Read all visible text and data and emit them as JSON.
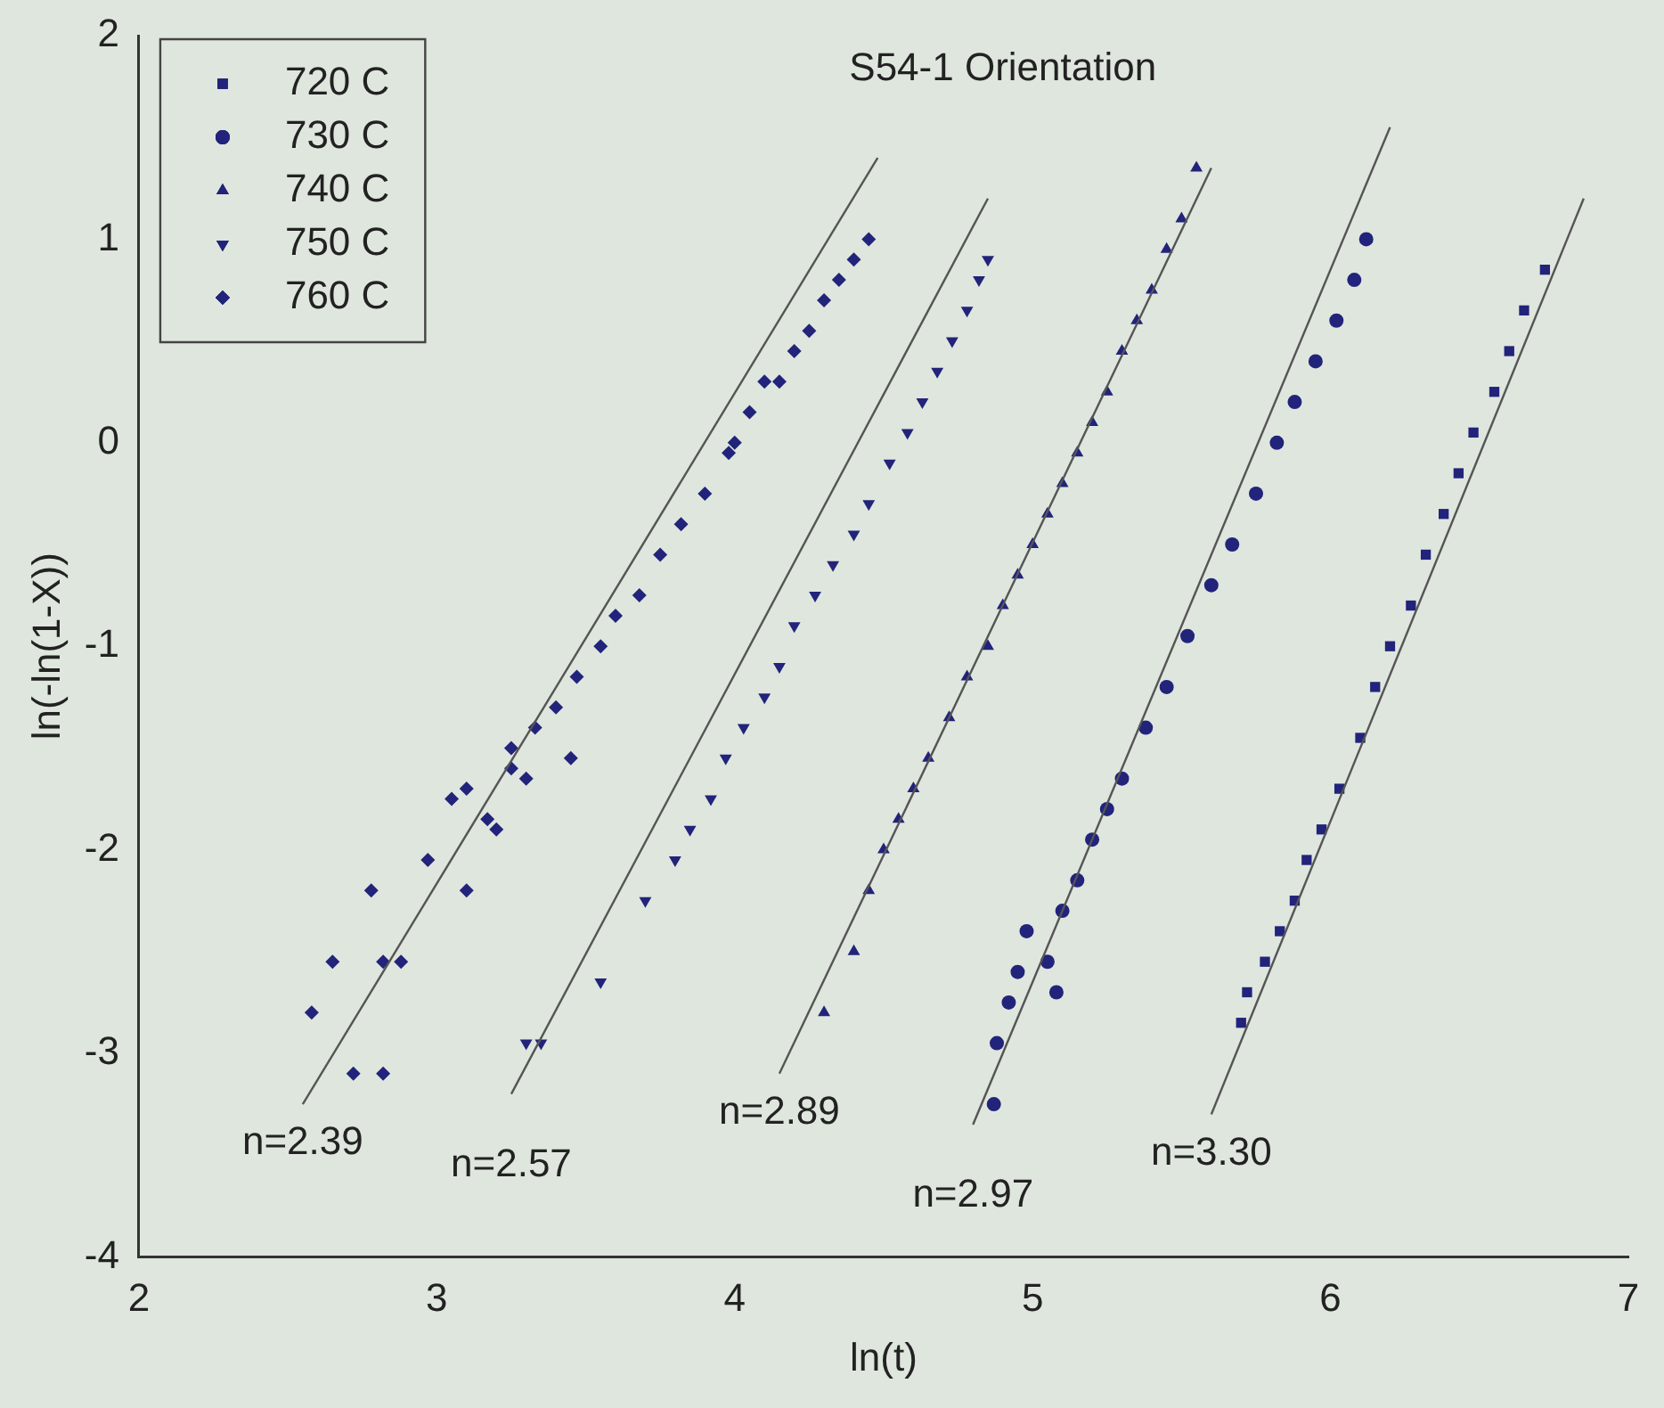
{
  "chart_data": {
    "type": "scatter",
    "title": "S54-1 Orientation",
    "xlabel": "ln(t)",
    "ylabel": "ln(-ln(1-X))",
    "xlim": [
      2,
      7
    ],
    "xticks": [
      2,
      3,
      4,
      5,
      6,
      7
    ],
    "ylim": [
      -4,
      2
    ],
    "yticks": [
      -4,
      -3,
      -2,
      -1,
      0,
      1,
      2
    ],
    "grid": false,
    "legend": "top left",
    "series": [
      {
        "name": "720 C",
        "color": "#22237a",
        "marker": "square",
        "x": [
          5.7,
          5.72,
          5.78,
          5.83,
          5.88,
          5.92,
          5.97,
          6.03,
          6.1,
          6.15,
          6.2,
          6.27,
          6.32,
          6.38,
          6.43,
          6.48,
          6.55,
          6.6,
          6.65,
          6.72
        ],
        "values": [
          -2.85,
          -2.7,
          -2.55,
          -2.4,
          -2.25,
          -2.05,
          -1.9,
          -1.7,
          -1.45,
          -1.2,
          -1.0,
          -0.8,
          -0.55,
          -0.35,
          -0.15,
          0.05,
          0.25,
          0.45,
          0.65,
          0.85
        ]
      },
      {
        "name": "730 C",
        "color": "#22237a",
        "marker": "circle",
        "x": [
          4.87,
          4.88,
          4.92,
          4.95,
          4.98,
          5.05,
          5.08,
          5.1,
          5.15,
          5.2,
          5.25,
          5.3,
          5.38,
          5.45,
          5.52,
          5.6,
          5.67,
          5.75,
          5.82,
          5.88,
          5.95,
          6.02,
          6.08,
          6.12
        ],
        "values": [
          -3.25,
          -2.95,
          -2.75,
          -2.6,
          -2.4,
          -2.55,
          -2.7,
          -2.3,
          -2.15,
          -1.95,
          -1.8,
          -1.65,
          -1.4,
          -1.2,
          -0.95,
          -0.7,
          -0.5,
          -0.25,
          0.0,
          0.2,
          0.4,
          0.6,
          0.8,
          1.0
        ]
      },
      {
        "name": "740 C",
        "color": "#22237a",
        "marker": "triangle",
        "x": [
          4.3,
          4.4,
          4.45,
          4.5,
          4.55,
          4.6,
          4.65,
          4.72,
          4.78,
          4.85,
          4.9,
          4.95,
          5.0,
          5.05,
          5.1,
          5.15,
          5.2,
          5.25,
          5.3,
          5.35,
          5.4,
          5.45,
          5.5,
          5.55
        ],
        "values": [
          -2.8,
          -2.5,
          -2.2,
          -2.0,
          -1.85,
          -1.7,
          -1.55,
          -1.35,
          -1.15,
          -1.0,
          -0.8,
          -0.65,
          -0.5,
          -0.35,
          -0.2,
          -0.05,
          0.1,
          0.25,
          0.45,
          0.6,
          0.75,
          0.95,
          1.1,
          1.35
        ]
      },
      {
        "name": "750 C",
        "color": "#22237a",
        "marker": "triangle_down",
        "x": [
          3.3,
          3.35,
          3.55,
          3.7,
          3.8,
          3.85,
          3.92,
          3.97,
          4.03,
          4.1,
          4.15,
          4.2,
          4.27,
          4.33,
          4.4,
          4.45,
          4.52,
          4.58,
          4.63,
          4.68,
          4.73,
          4.78,
          4.82,
          4.85
        ],
        "values": [
          -2.95,
          -2.95,
          -2.65,
          -2.25,
          -2.05,
          -1.9,
          -1.75,
          -1.55,
          -1.4,
          -1.25,
          -1.1,
          -0.9,
          -0.75,
          -0.6,
          -0.45,
          -0.3,
          -0.1,
          0.05,
          0.2,
          0.35,
          0.5,
          0.65,
          0.8,
          0.9
        ]
      },
      {
        "name": "760 C",
        "color": "#22237a",
        "marker": "diamond",
        "x": [
          2.58,
          2.65,
          2.72,
          2.82,
          2.82,
          2.88,
          2.78,
          2.97,
          3.05,
          3.1,
          3.1,
          3.17,
          3.2,
          3.25,
          3.25,
          3.3,
          3.33,
          3.4,
          3.45,
          3.47,
          3.55,
          3.6,
          3.68,
          3.75,
          3.82,
          3.9,
          3.98,
          4.0,
          4.05,
          4.1,
          4.15,
          4.2,
          4.25,
          4.3,
          4.35,
          4.4,
          4.45
        ],
        "values": [
          -2.8,
          -2.55,
          -3.1,
          -3.1,
          -2.55,
          -2.55,
          -2.2,
          -2.05,
          -1.75,
          -1.7,
          -2.2,
          -1.85,
          -1.9,
          -1.6,
          -1.5,
          -1.65,
          -1.4,
          -1.3,
          -1.55,
          -1.15,
          -1.0,
          -0.85,
          -0.75,
          -0.55,
          -0.4,
          -0.25,
          -0.05,
          0.0,
          0.15,
          0.3,
          0.3,
          0.45,
          0.55,
          0.7,
          0.8,
          0.9,
          1.0
        ]
      },
      {
        "type": "line",
        "color": "#555555",
        "marker": "none",
        "x": [
          5.6,
          6.85
        ],
        "values": [
          -3.3,
          1.2
        ]
      },
      {
        "type": "line",
        "color": "#555555",
        "marker": "none",
        "x": [
          4.8,
          6.2
        ],
        "values": [
          -3.35,
          1.55
        ]
      },
      {
        "type": "line",
        "color": "#555555",
        "marker": "none",
        "x": [
          4.15,
          5.6
        ],
        "values": [
          -3.1,
          1.35
        ]
      },
      {
        "type": "line",
        "color": "#555555",
        "marker": "none",
        "x": [
          3.25,
          4.85
        ],
        "values": [
          -3.2,
          1.2
        ]
      },
      {
        "type": "line",
        "color": "#555555",
        "marker": "none",
        "x": [
          2.55,
          4.48
        ],
        "values": [
          -3.25,
          1.4
        ]
      }
    ],
    "annotations": [
      "n=2.39",
      "n=2.57",
      "n=2.89",
      "n=2.97",
      "n=3.30"
    ]
  }
}
